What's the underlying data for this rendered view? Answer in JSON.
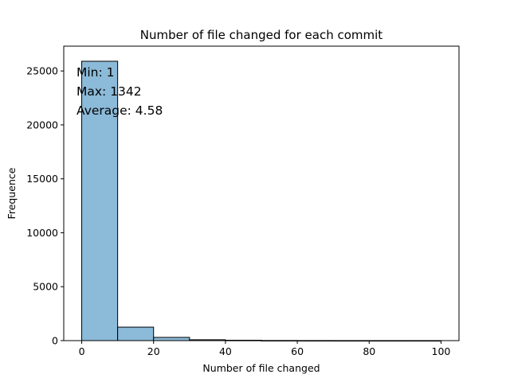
{
  "chart_data": {
    "type": "bar",
    "title": "Number of file changed for each commit",
    "xlabel": "Number of file changed",
    "ylabel": "Frequence",
    "xlim": [
      -5,
      105
    ],
    "ylim": [
      0,
      27300
    ],
    "x_ticks": [
      0,
      20,
      40,
      60,
      80,
      100
    ],
    "y_ticks": [
      0,
      5000,
      10000,
      15000,
      20000,
      25000
    ],
    "bins": [
      {
        "start": 0,
        "end": 10,
        "value": 25900
      },
      {
        "start": 10,
        "end": 20,
        "value": 1250
      },
      {
        "start": 20,
        "end": 30,
        "value": 300
      },
      {
        "start": 30,
        "end": 40,
        "value": 80
      },
      {
        "start": 40,
        "end": 50,
        "value": 35
      },
      {
        "start": 50,
        "end": 60,
        "value": 10
      },
      {
        "start": 60,
        "end": 70,
        "value": 5
      },
      {
        "start": 70,
        "end": 80,
        "value": 3
      },
      {
        "start": 80,
        "end": 90,
        "value": 2
      },
      {
        "start": 90,
        "end": 100,
        "value": 2
      }
    ],
    "bar_color": "#8cbad9",
    "edge_color": "#000000",
    "grid": false,
    "annotations": [
      "Min: 1",
      "Max: 1342",
      "Average: 4.58"
    ]
  }
}
